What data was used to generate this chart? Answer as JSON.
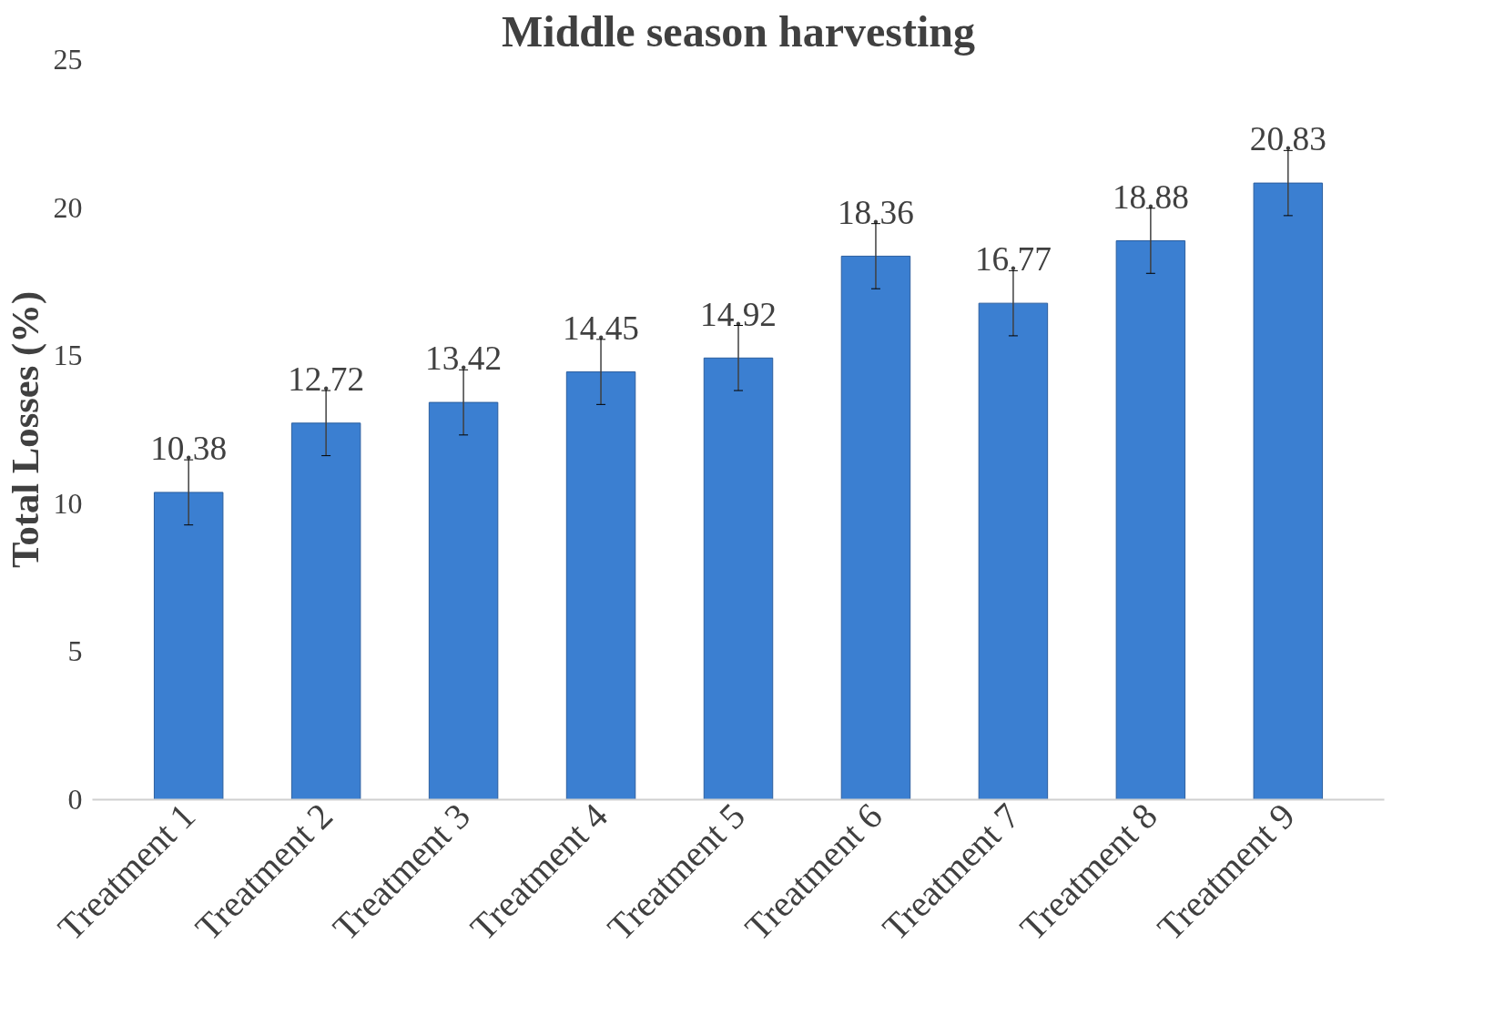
{
  "chart_data": {
    "type": "bar",
    "title": "Middle season harvesting",
    "ylabel": "Total Losses (%)",
    "categories": [
      "Treatment 1",
      "Treatment 2",
      "Treatment 3",
      "Treatment 4",
      "Treatment 5",
      "Treatment 6",
      "Treatment 7",
      "Treatment 8",
      "Treatment 9"
    ],
    "values": [
      10.38,
      12.72,
      13.42,
      14.45,
      14.92,
      18.36,
      16.77,
      18.88,
      20.83
    ],
    "errors": [
      1.1,
      1.1,
      1.1,
      1.1,
      1.1,
      1.1,
      1.1,
      1.1,
      1.1
    ],
    "color": "#3b7fd1",
    "data_labels": true,
    "grid": false,
    "ylim": [
      0,
      25
    ],
    "yticks": [
      0,
      5,
      10,
      15,
      20,
      25
    ]
  }
}
